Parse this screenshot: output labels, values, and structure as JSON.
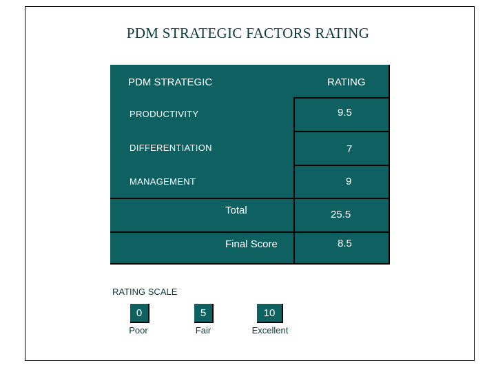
{
  "title": "PDM STRATEGIC FACTORS RATING",
  "table": {
    "headers": {
      "factor": "PDM STRATEGIC",
      "rating": "RATING"
    },
    "rows": [
      {
        "factor": "PRODUCTIVITY",
        "rating": "9.5"
      },
      {
        "factor": "DIFFERENTIATION",
        "rating": "7"
      },
      {
        "factor": "MANAGEMENT",
        "rating": "9"
      }
    ],
    "total": {
      "label": "Total",
      "value": "25.5"
    },
    "final": {
      "label": "Final Score",
      "value": "8.5"
    }
  },
  "scale": {
    "title": "RATING SCALE",
    "items": [
      {
        "value": "0",
        "label": "Poor"
      },
      {
        "value": "5",
        "label": "Fair"
      },
      {
        "value": "10",
        "label": "Excellent"
      }
    ]
  },
  "colors": {
    "teal": "#0f6161",
    "text_dark": "#0d3a3a"
  }
}
